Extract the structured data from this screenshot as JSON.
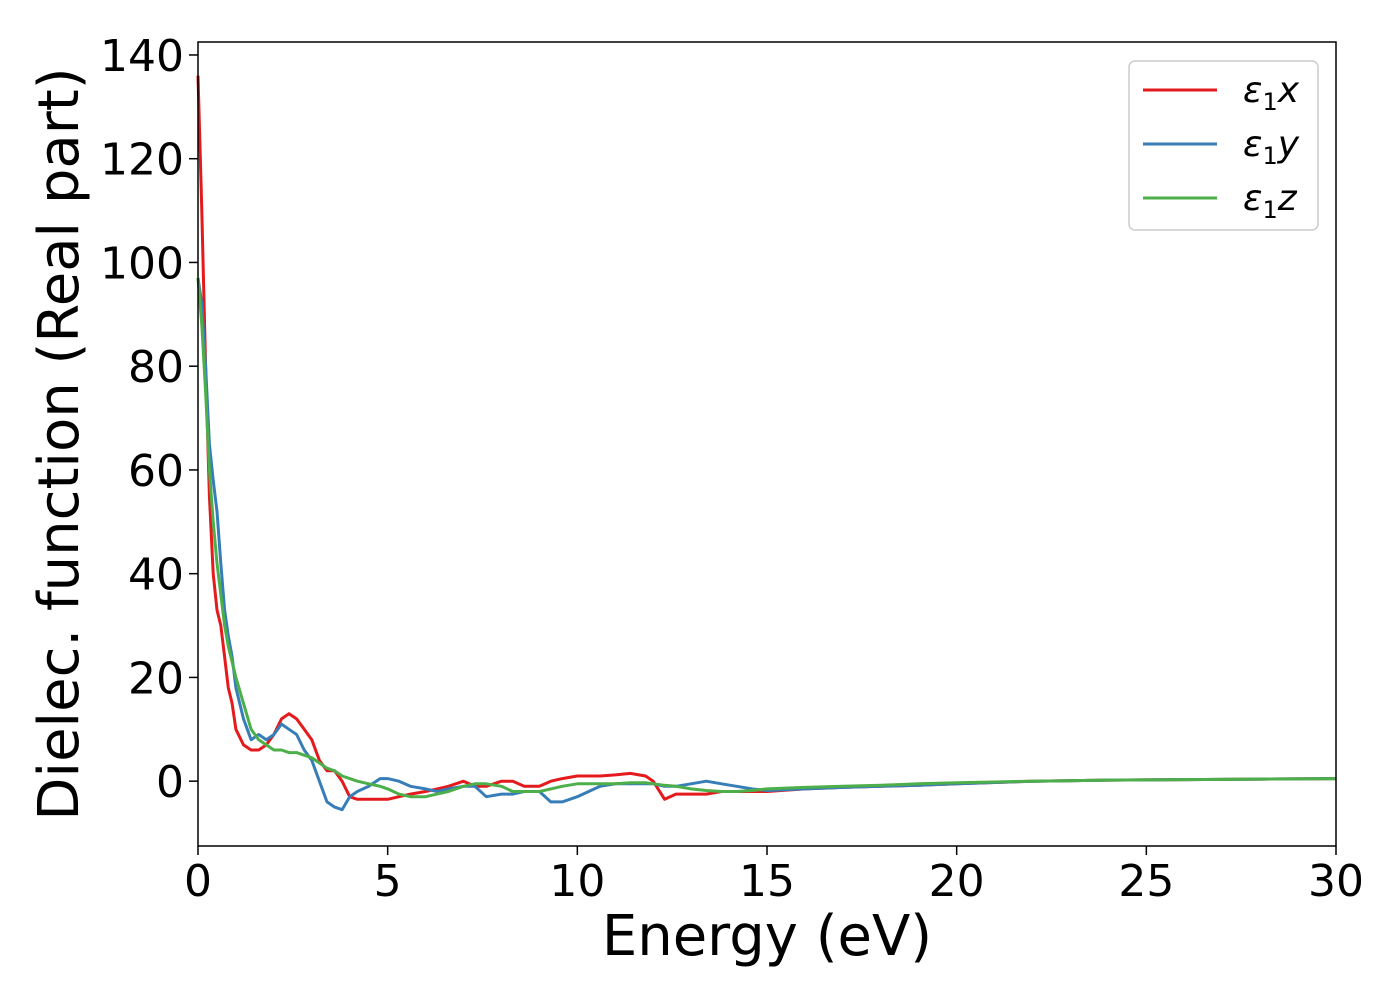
{
  "chart_data": {
    "type": "line",
    "xlabel": "Energy (eV)",
    "ylabel": "Dielec. function (Real part)",
    "xlim": [
      0,
      30
    ],
    "ylim": [
      -12.5,
      142.5
    ],
    "xticks": [
      0,
      5,
      10,
      15,
      20,
      25,
      30
    ],
    "yticks": [
      0,
      20,
      40,
      60,
      80,
      100,
      120,
      140
    ],
    "grid": false,
    "legend_position": "top-right",
    "series": [
      {
        "name": "ε₁x",
        "legend_main": "ε",
        "legend_sub": "1",
        "legend_suffix": "x",
        "color": "#e41a1c",
        "x": [
          0,
          0.1,
          0.2,
          0.3,
          0.4,
          0.5,
          0.6,
          0.7,
          0.8,
          0.9,
          1.0,
          1.2,
          1.4,
          1.6,
          1.8,
          2.0,
          2.2,
          2.4,
          2.6,
          2.8,
          3.0,
          3.2,
          3.4,
          3.6,
          3.8,
          4.0,
          4.2,
          4.5,
          4.8,
          5.0,
          5.3,
          5.6,
          6.0,
          6.3,
          6.6,
          7.0,
          7.3,
          7.6,
          8.0,
          8.3,
          8.6,
          9.0,
          9.3,
          9.6,
          10.0,
          10.3,
          10.6,
          11.0,
          11.4,
          11.8,
          12.0,
          12.3,
          12.6,
          13.0,
          13.4,
          13.8,
          14.2,
          14.6,
          15.0,
          16.0,
          17.0,
          18.0,
          19.0,
          20.0,
          22.0,
          24.0,
          26.0,
          28.0,
          30.0
        ],
        "values": [
          136,
          110,
          80,
          55,
          40,
          33,
          30,
          24,
          18,
          15,
          10,
          7,
          6,
          6,
          7,
          9,
          12,
          13,
          12,
          10,
          8,
          4,
          2,
          2,
          0,
          -3,
          -3.5,
          -3.5,
          -3.5,
          -3.5,
          -3,
          -2.5,
          -2,
          -1.5,
          -1,
          0,
          -1,
          -1,
          0,
          0,
          -1,
          -1,
          0,
          0.5,
          1,
          1,
          1,
          1.2,
          1.5,
          1,
          0,
          -3.5,
          -2.5,
          -2.5,
          -2.5,
          -2,
          -2,
          -2,
          -2,
          -1.5,
          -1.2,
          -1,
          -0.8,
          -0.5,
          0,
          0.2,
          0.3,
          0.4,
          0.5
        ]
      },
      {
        "name": "ε₁y",
        "legend_main": "ε",
        "legend_sub": "1",
        "legend_suffix": "y",
        "color": "#377eb8",
        "x": [
          0,
          0.1,
          0.2,
          0.3,
          0.4,
          0.5,
          0.6,
          0.7,
          0.8,
          0.9,
          1.0,
          1.2,
          1.4,
          1.6,
          1.8,
          2.0,
          2.2,
          2.4,
          2.6,
          2.8,
          3.0,
          3.2,
          3.4,
          3.6,
          3.8,
          4.0,
          4.2,
          4.5,
          4.8,
          5.0,
          5.3,
          5.6,
          6.0,
          6.3,
          6.6,
          7.0,
          7.3,
          7.6,
          8.0,
          8.3,
          8.6,
          9.0,
          9.3,
          9.6,
          10.0,
          10.3,
          10.6,
          11.0,
          11.4,
          11.8,
          12.0,
          12.3,
          12.6,
          13.0,
          13.4,
          13.8,
          14.2,
          14.6,
          15.0,
          16.0,
          17.0,
          18.0,
          19.0,
          20.0,
          22.0,
          24.0,
          26.0,
          28.0,
          30.0
        ],
        "values": [
          97,
          92,
          80,
          65,
          58,
          52,
          42,
          33,
          28,
          24,
          18,
          12,
          8,
          9,
          8,
          9,
          11,
          10,
          9,
          6,
          4,
          0,
          -4,
          -5,
          -5.5,
          -3,
          -2,
          -1,
          0.5,
          0.5,
          0,
          -1,
          -1.5,
          -2,
          -1.5,
          -1,
          -1,
          -3,
          -2.5,
          -2.5,
          -2,
          -2,
          -4,
          -4,
          -3,
          -2,
          -1,
          -0.5,
          -0.5,
          -0.5,
          -0.5,
          -1,
          -1,
          -0.5,
          0,
          -0.5,
          -1,
          -1.5,
          -1.8,
          -1.5,
          -1.2,
          -1,
          -0.8,
          -0.5,
          0,
          0.2,
          0.3,
          0.4,
          0.5
        ]
      },
      {
        "name": "ε₁z",
        "legend_main": "ε",
        "legend_sub": "1",
        "legend_suffix": "z",
        "color": "#4daf4a",
        "x": [
          0,
          0.1,
          0.2,
          0.3,
          0.4,
          0.5,
          0.6,
          0.7,
          0.8,
          0.9,
          1.0,
          1.2,
          1.4,
          1.6,
          1.8,
          2.0,
          2.2,
          2.4,
          2.6,
          2.8,
          3.0,
          3.2,
          3.4,
          3.6,
          3.8,
          4.0,
          4.2,
          4.5,
          4.8,
          5.0,
          5.3,
          5.6,
          6.0,
          6.3,
          6.6,
          7.0,
          7.3,
          7.6,
          8.0,
          8.3,
          8.6,
          9.0,
          9.3,
          9.6,
          10.0,
          10.3,
          10.6,
          11.0,
          11.4,
          11.8,
          12.0,
          12.3,
          12.6,
          13.0,
          13.4,
          13.8,
          14.2,
          14.6,
          15.0,
          16.0,
          17.0,
          18.0,
          19.0,
          20.0,
          22.0,
          24.0,
          26.0,
          28.0,
          30.0
        ],
        "values": [
          97,
          88,
          75,
          60,
          50,
          42,
          36,
          30,
          26,
          23,
          20,
          15,
          10,
          8,
          7,
          6,
          6,
          5.5,
          5.5,
          5,
          4.5,
          3.5,
          2.5,
          2,
          1,
          0.5,
          0,
          -0.5,
          -1,
          -1.5,
          -2.5,
          -3,
          -3,
          -2.5,
          -2,
          -1,
          -0.5,
          -0.5,
          -1,
          -2,
          -2,
          -2,
          -1.5,
          -1,
          -0.5,
          -0.5,
          -0.5,
          -0.5,
          -0.3,
          -0.3,
          -0.5,
          -0.8,
          -1,
          -1.5,
          -1.8,
          -2,
          -2,
          -1.8,
          -1.5,
          -1.2,
          -1,
          -0.8,
          -0.5,
          -0.3,
          0,
          0.2,
          0.3,
          0.4,
          0.5
        ]
      }
    ]
  }
}
